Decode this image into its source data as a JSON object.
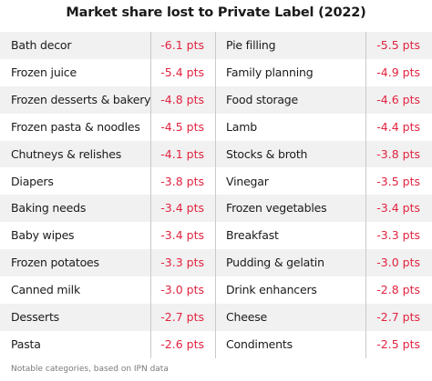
{
  "title": "Market share lost to Private Label (2022)",
  "footnote": "Notable categories, based on IPN data",
  "colors": {
    "value_text": "#e2233f",
    "shaded_row": "#f1f1f1",
    "divider": "#c9c9c9"
  },
  "chart_data": {
    "type": "table",
    "title": "Market share lost to Private Label (2022)",
    "unit": "pts",
    "columns": [
      {
        "rows": [
          {
            "category": "Bath decor",
            "label": "-6.1 pts",
            "value": -6.1
          },
          {
            "category": "Frozen juice",
            "label": "-5.4 pts",
            "value": -5.4
          },
          {
            "category": "Frozen desserts & bakery",
            "label": "-4.8 pts",
            "value": -4.8
          },
          {
            "category": "Frozen pasta & noodles",
            "label": "-4.5 pts",
            "value": -4.5
          },
          {
            "category": "Chutneys & relishes",
            "label": "-4.1 pts",
            "value": -4.1
          },
          {
            "category": "Diapers",
            "label": "-3.8 pts",
            "value": -3.8
          },
          {
            "category": "Baking needs",
            "label": "-3.4 pts",
            "value": -3.4
          },
          {
            "category": "Baby wipes",
            "label": "-3.4 pts",
            "value": -3.4
          },
          {
            "category": "Frozen potatoes",
            "label": "-3.3 pts",
            "value": -3.3
          },
          {
            "category": "Canned milk",
            "label": "-3.0 pts",
            "value": -3.0
          },
          {
            "category": "Desserts",
            "label": "-2.7 pts",
            "value": -2.7
          },
          {
            "category": "Pasta",
            "label": "-2.6 pts",
            "value": -2.6
          }
        ]
      },
      {
        "rows": [
          {
            "category": "Pie filling",
            "label": "-5.5 pts",
            "value": -5.5
          },
          {
            "category": "Family planning",
            "label": "-4.9 pts",
            "value": -4.9
          },
          {
            "category": "Food storage",
            "label": "-4.6 pts",
            "value": -4.6
          },
          {
            "category": "Lamb",
            "label": "-4.4 pts",
            "value": -4.4
          },
          {
            "category": "Stocks & broth",
            "label": "-3.8 pts",
            "value": -3.8
          },
          {
            "category": "Vinegar",
            "label": "-3.5 pts",
            "value": -3.5
          },
          {
            "category": "Frozen vegetables",
            "label": "-3.4 pts",
            "value": -3.4
          },
          {
            "category": "Breakfast",
            "label": "-3.3 pts",
            "value": -3.3
          },
          {
            "category": "Pudding & gelatin",
            "label": "-3.0 pts",
            "value": -3.0
          },
          {
            "category": "Drink enhancers",
            "label": "-2.8 pts",
            "value": -2.8
          },
          {
            "category": "Cheese",
            "label": "-2.7 pts",
            "value": -2.7
          },
          {
            "category": "Condiments",
            "label": "-2.5 pts",
            "value": -2.5
          }
        ]
      }
    ]
  }
}
